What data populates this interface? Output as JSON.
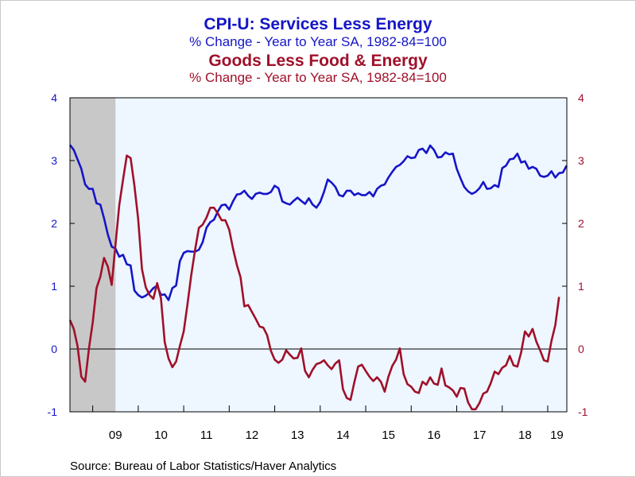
{
  "chart_data": {
    "type": "line",
    "title": "CPI-U: Services Less Energy",
    "subtitle": "% Change - Year to Year     SA, 1982-84=100",
    "title2": "Goods Less Food & Energy",
    "subtitle2": "% Change - Year to Year     SA, 1982-84=100",
    "source": "Source:  Bureau of Labor Statistics/Haver Analytics",
    "x_start": 2008.5,
    "x_end": 2019.42,
    "ylim": [
      -1,
      4
    ],
    "y_ticks": [
      -1,
      0,
      1,
      2,
      3,
      4
    ],
    "y_tick_labels": [
      "-1",
      "0",
      "1",
      "2",
      "3",
      "4"
    ],
    "y2_tick_labels": [
      "-1",
      "0",
      "1",
      "2",
      "3",
      "4"
    ],
    "x_tick_labels": [
      "09",
      "10",
      "11",
      "12",
      "13",
      "14",
      "15",
      "16",
      "17",
      "18",
      "19"
    ],
    "x_tick_label_years": [
      2009.5,
      2010.5,
      2011.5,
      2012.5,
      2013.5,
      2014.5,
      2015.5,
      2016.5,
      2017.5,
      2018.5,
      2019.2
    ],
    "recession": [
      2008.5,
      2009.5
    ],
    "x_step": 0.08333,
    "series": [
      {
        "name": "CPI-U: Services Less Energy",
        "color": "#1515c8",
        "values": [
          3.25,
          3.17,
          3.02,
          2.87,
          2.62,
          2.55,
          2.55,
          2.32,
          2.3,
          2.08,
          1.82,
          1.63,
          1.6,
          1.47,
          1.5,
          1.35,
          1.33,
          0.93,
          0.86,
          0.82,
          0.85,
          0.9,
          0.97,
          1.01,
          0.86,
          0.87,
          0.78,
          0.97,
          1.01,
          1.4,
          1.53,
          1.56,
          1.55,
          1.55,
          1.58,
          1.7,
          1.93,
          2.02,
          2.06,
          2.19,
          2.29,
          2.3,
          2.22,
          2.35,
          2.46,
          2.47,
          2.52,
          2.44,
          2.39,
          2.47,
          2.49,
          2.47,
          2.47,
          2.5,
          2.6,
          2.56,
          2.35,
          2.32,
          2.3,
          2.36,
          2.41,
          2.36,
          2.31,
          2.4,
          2.3,
          2.25,
          2.34,
          2.5,
          2.7,
          2.65,
          2.58,
          2.45,
          2.43,
          2.52,
          2.52,
          2.45,
          2.48,
          2.45,
          2.45,
          2.5,
          2.43,
          2.55,
          2.6,
          2.62,
          2.73,
          2.82,
          2.9,
          2.93,
          2.99,
          3.07,
          3.04,
          3.05,
          3.17,
          3.19,
          3.12,
          3.24,
          3.17,
          3.05,
          3.06,
          3.13,
          3.1,
          3.11,
          2.87,
          2.72,
          2.58,
          2.51,
          2.47,
          2.5,
          2.56,
          2.66,
          2.55,
          2.56,
          2.61,
          2.58,
          2.88,
          2.92,
          3.02,
          3.03,
          3.11,
          2.97,
          2.99,
          2.87,
          2.9,
          2.87,
          2.76,
          2.74,
          2.76,
          2.83,
          2.73,
          2.8,
          2.81,
          2.92
        ]
      },
      {
        "name": "Goods Less Food & Energy",
        "color": "#a0102a",
        "values": [
          0.46,
          0.32,
          0.05,
          -0.44,
          -0.52,
          0.0,
          0.42,
          0.97,
          1.15,
          1.45,
          1.31,
          1.02,
          1.65,
          2.29,
          2.7,
          3.08,
          3.04,
          2.6,
          2.07,
          1.27,
          0.98,
          0.86,
          0.8,
          1.05,
          0.8,
          0.11,
          -0.15,
          -0.29,
          -0.2,
          0.05,
          0.28,
          0.71,
          1.18,
          1.58,
          1.93,
          1.98,
          2.09,
          2.25,
          2.25,
          2.16,
          2.05,
          2.05,
          1.9,
          1.6,
          1.34,
          1.14,
          0.68,
          0.7,
          0.59,
          0.48,
          0.36,
          0.34,
          0.22,
          -0.03,
          -0.17,
          -0.22,
          -0.17,
          -0.02,
          -0.09,
          -0.15,
          -0.14,
          0.01,
          -0.35,
          -0.45,
          -0.33,
          -0.24,
          -0.22,
          -0.18,
          -0.26,
          -0.32,
          -0.23,
          -0.18,
          -0.64,
          -0.78,
          -0.81,
          -0.53,
          -0.28,
          -0.25,
          -0.35,
          -0.44,
          -0.51,
          -0.45,
          -0.52,
          -0.68,
          -0.44,
          -0.27,
          -0.17,
          0.01,
          -0.4,
          -0.56,
          -0.6,
          -0.68,
          -0.7,
          -0.52,
          -0.57,
          -0.45,
          -0.55,
          -0.57,
          -0.31,
          -0.58,
          -0.61,
          -0.66,
          -0.76,
          -0.62,
          -0.63,
          -0.85,
          -0.96,
          -0.96,
          -0.86,
          -0.71,
          -0.68,
          -0.54,
          -0.36,
          -0.4,
          -0.3,
          -0.26,
          -0.11,
          -0.26,
          -0.28,
          -0.05,
          0.28,
          0.2,
          0.32,
          0.12,
          -0.02,
          -0.18,
          -0.2,
          0.13,
          0.38,
          0.83
        ]
      }
    ]
  }
}
